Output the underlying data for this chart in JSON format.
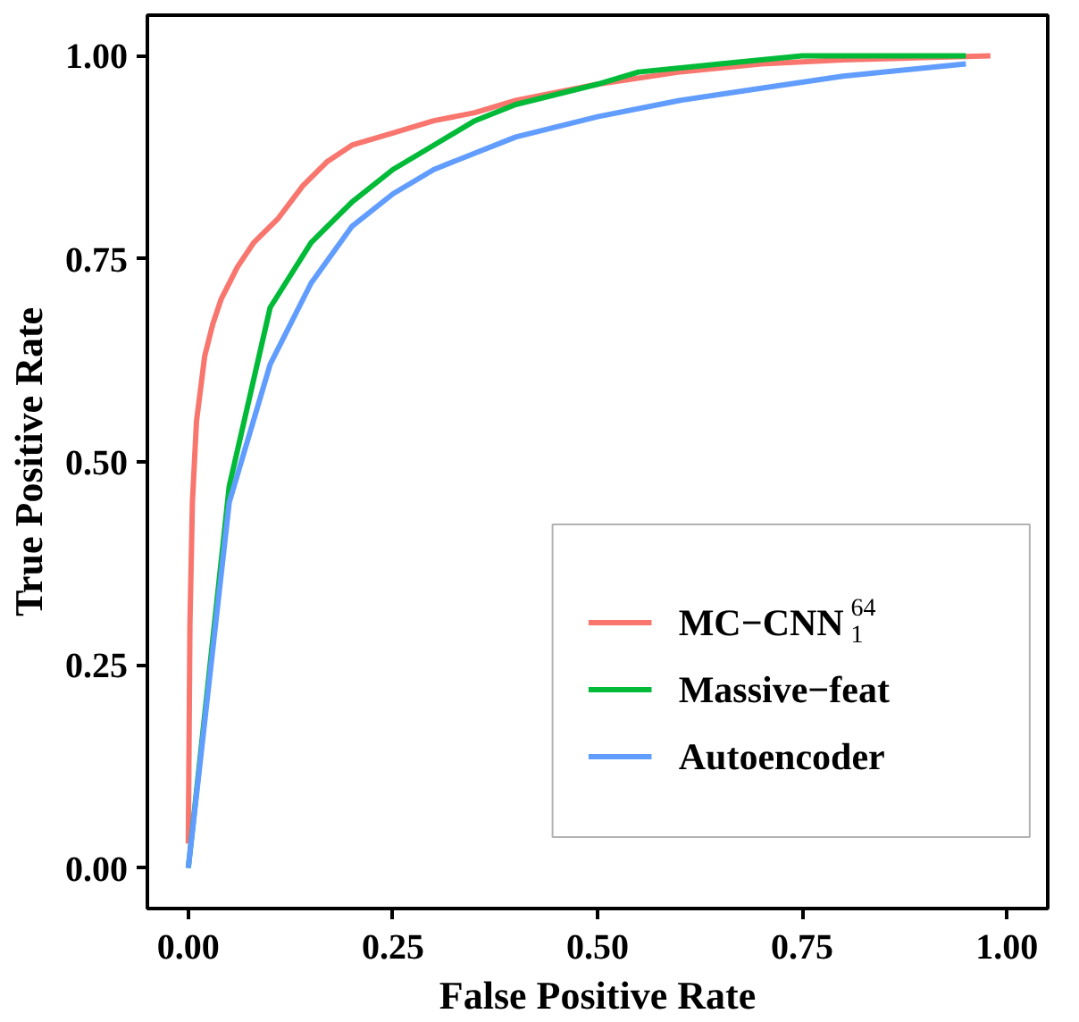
{
  "chart_data": {
    "type": "line",
    "xlabel": "False Positive Rate",
    "ylabel": "True Positive Rate",
    "xlim": [
      -0.05,
      1.05
    ],
    "ylim": [
      -0.05,
      1.05
    ],
    "xticks": [
      {
        "value": 0,
        "label": "0.00"
      },
      {
        "value": 0.25,
        "label": "0.25"
      },
      {
        "value": 0.5,
        "label": "0.50"
      },
      {
        "value": 0.75,
        "label": "0.75"
      },
      {
        "value": 1,
        "label": "1.00"
      }
    ],
    "yticks": [
      {
        "value": 0,
        "label": "0.00"
      },
      {
        "value": 0.25,
        "label": "0.25"
      },
      {
        "value": 0.5,
        "label": "0.50"
      },
      {
        "value": 0.75,
        "label": "0.75"
      },
      {
        "value": 1,
        "label": "1.00"
      }
    ],
    "grid": false,
    "legend": "bottom right",
    "marker": "none",
    "line_style": "solid",
    "series": [
      {
        "name": "MC−CNN$_{1}$$^{64}$",
        "color": "#f8766d",
        "x": [
          0,
          0.002,
          0.005,
          0.01,
          0.02,
          0.03,
          0.04,
          0.06,
          0.08,
          0.11,
          0.14,
          0.17,
          0.2,
          0.25,
          0.3,
          0.35,
          0.4,
          0.5,
          0.6,
          0.7,
          0.8,
          0.98
        ],
        "values": [
          0.03,
          0.3,
          0.45,
          0.55,
          0.63,
          0.67,
          0.7,
          0.74,
          0.77,
          0.8,
          0.84,
          0.87,
          0.89,
          0.905,
          0.92,
          0.93,
          0.945,
          0.965,
          0.98,
          0.99,
          0.995,
          1.0
        ]
      },
      {
        "name": "Massive−feat",
        "color": "#00ba38",
        "x": [
          0,
          0.05,
          0.1,
          0.15,
          0.2,
          0.25,
          0.3,
          0.35,
          0.4,
          0.5,
          0.55,
          0.65,
          0.75,
          0.95
        ],
        "values": [
          0,
          0.47,
          0.69,
          0.77,
          0.82,
          0.86,
          0.89,
          0.92,
          0.94,
          0.965,
          0.98,
          0.99,
          1.0,
          1.0
        ]
      },
      {
        "name": "Autoencoder",
        "color": "#619cff",
        "x": [
          0,
          0.05,
          0.1,
          0.15,
          0.2,
          0.25,
          0.3,
          0.35,
          0.4,
          0.5,
          0.6,
          0.7,
          0.8,
          0.95
        ],
        "values": [
          0,
          0.45,
          0.62,
          0.72,
          0.79,
          0.83,
          0.86,
          0.88,
          0.9,
          0.925,
          0.945,
          0.96,
          0.975,
          0.99
        ]
      }
    ]
  }
}
